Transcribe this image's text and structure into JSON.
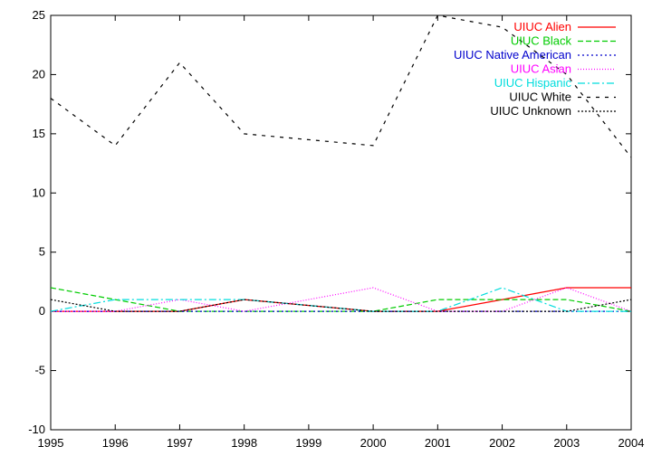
{
  "chart_data": {
    "type": "line",
    "title": "",
    "xlabel": "",
    "ylabel": "",
    "x": [
      1995,
      1996,
      1997,
      1998,
      1999,
      2000,
      2001,
      2002,
      2003,
      2004
    ],
    "xlim": [
      1995,
      2004
    ],
    "ylim": [
      -10,
      25
    ],
    "x_ticks": [
      "1995",
      "1996",
      "1997",
      "1998",
      "1999",
      "2000",
      "2001",
      "2002",
      "2003",
      "2004"
    ],
    "y_ticks": [
      "-10",
      "-5",
      "0",
      "5",
      "10",
      "15",
      "20",
      "25"
    ],
    "grid": false,
    "legend_position": "top-right",
    "series": [
      {
        "name": "UIUC Alien",
        "color": "#ff0000",
        "dash": "solid",
        "values": [
          0,
          0,
          0,
          1,
          null,
          0,
          0,
          1,
          2,
          2
        ]
      },
      {
        "name": "UIUC Black",
        "color": "#00cc00",
        "dash": "dashed",
        "values": [
          2,
          1,
          0,
          0,
          null,
          0,
          1,
          1,
          1,
          0
        ]
      },
      {
        "name": "UIUC Native American",
        "color": "#0000cc",
        "dash": "dotted",
        "values": [
          0,
          0,
          0,
          0,
          null,
          0,
          0,
          0,
          0,
          0
        ]
      },
      {
        "name": "UIUC Asian",
        "color": "#ff00ff",
        "dash": "fine-dotted",
        "values": [
          0,
          0,
          1,
          0,
          null,
          2,
          0,
          0,
          2,
          0
        ]
      },
      {
        "name": "UIUC Hispanic",
        "color": "#00dddd",
        "dash": "dash-dot",
        "values": [
          0,
          1,
          1,
          1,
          null,
          0,
          0,
          2,
          0,
          0
        ]
      },
      {
        "name": "UIUC White",
        "color": "#000000",
        "dash": "sparse-dashed",
        "values": [
          18,
          14,
          21,
          15,
          null,
          14,
          25,
          24,
          20,
          13
        ]
      },
      {
        "name": "UIUC Unknown",
        "color": "#000000",
        "dash": "dense-dotted",
        "values": [
          1,
          0,
          0,
          1,
          null,
          0,
          0,
          0,
          0,
          1
        ]
      }
    ]
  }
}
